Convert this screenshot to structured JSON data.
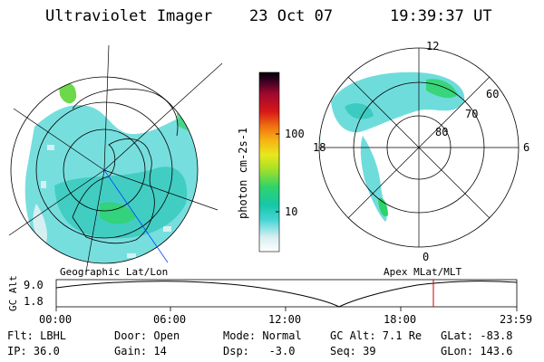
{
  "header": {
    "instrument": "Ultraviolet Imager",
    "date": "23 Oct 07",
    "time": "19:39:37 UT"
  },
  "colorbar": {
    "unit_label": "photon cm-2s-1",
    "ticks": [
      "100",
      "10"
    ]
  },
  "left_map": {
    "title": "Geographic Lat/Lon"
  },
  "right_map": {
    "title": "Apex MLat/MLT",
    "mlt_labels": [
      "12",
      "18",
      "6",
      "0"
    ],
    "lat_labels": [
      "60",
      "70",
      "80"
    ]
  },
  "altitude_plot": {
    "ylabel": "GC Alt",
    "ytick_top": "9.0",
    "ytick_bottom": "1.8",
    "xticks": [
      "00:00",
      "06:00",
      "12:00",
      "18:00",
      "23:59"
    ]
  },
  "status": {
    "flt": "Flt: LBHL",
    "ip": "IP: 36.0",
    "door": "Door: Open",
    "gain": "Gain: 14",
    "mode": "Mode: Normal",
    "dsp": "Dsp:   -3.0",
    "gcalt": "GC Alt: 7.1 Re",
    "seq": "Seq: 39",
    "glat": "GLat: -83.8",
    "glon": "GLon: 143.6"
  }
}
